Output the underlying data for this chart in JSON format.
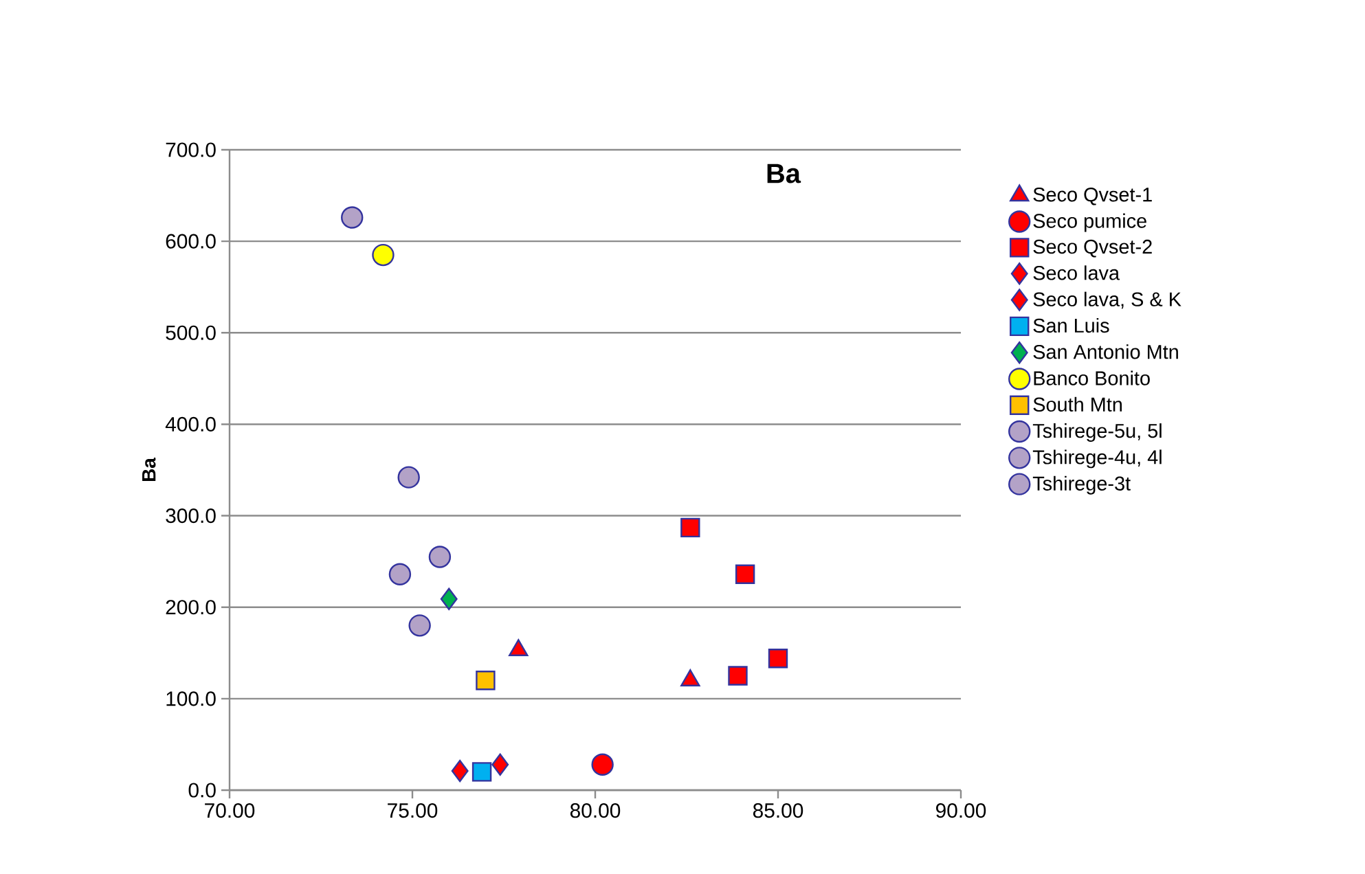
{
  "chart_data": {
    "type": "scatter",
    "title": "Ba",
    "ylabel": "Ba",
    "xlim": [
      70,
      90
    ],
    "ylim": [
      0,
      700
    ],
    "xticks": [
      {
        "value": 70,
        "label": "70.00"
      },
      {
        "value": 75,
        "label": "75.00"
      },
      {
        "value": 80,
        "label": "80.00"
      },
      {
        "value": 85,
        "label": "85.00"
      },
      {
        "value": 90,
        "label": "90.00"
      }
    ],
    "yticks": [
      {
        "value": 0,
        "label": "0.0"
      },
      {
        "value": 100,
        "label": "100.0"
      },
      {
        "value": 200,
        "label": "200.0"
      },
      {
        "value": 300,
        "label": "300.0"
      },
      {
        "value": 400,
        "label": "400.0"
      },
      {
        "value": 500,
        "label": "500.0"
      },
      {
        "value": 600,
        "label": "600.0"
      },
      {
        "value": 700,
        "label": "700.0"
      }
    ],
    "grid": "y",
    "legend": "right",
    "series": [
      {
        "name": "Seco Qvset-1",
        "marker": "triangle",
        "color": "#ff0000",
        "x": [
          77.9,
          82.6
        ],
        "values": [
          153,
          120
        ]
      },
      {
        "name": "Seco pumice",
        "marker": "circle",
        "color": "#ff0000",
        "x": [
          80.2
        ],
        "values": [
          28
        ]
      },
      {
        "name": "Seco Qvset-2",
        "marker": "square",
        "color": "#ff0000",
        "x": [
          82.6,
          84.1,
          83.9,
          85.0
        ],
        "values": [
          287,
          236,
          125,
          144
        ]
      },
      {
        "name": "Seco lava",
        "marker": "diamond",
        "color": "#ff0000",
        "x": [
          77.4
        ],
        "values": [
          28
        ]
      },
      {
        "name": "Seco lava, S & K",
        "marker": "diamond",
        "color": "#ff0000",
        "x": [
          76.3
        ],
        "values": [
          21
        ]
      },
      {
        "name": "San Luis",
        "marker": "square",
        "color": "#00b0f0",
        "x": [
          76.9
        ],
        "values": [
          20
        ]
      },
      {
        "name": "San Antonio Mtn",
        "marker": "diamond",
        "color": "#00b050",
        "x": [
          76.0
        ],
        "values": [
          209
        ]
      },
      {
        "name": "Banco Bonito",
        "marker": "circle",
        "color": "#ffff00",
        "x": [
          74.2
        ],
        "values": [
          585
        ]
      },
      {
        "name": "South Mtn",
        "marker": "square",
        "color": "#ffc000",
        "x": [
          77.0
        ],
        "values": [
          120
        ]
      },
      {
        "name": "Tshirege-5u, 5l",
        "marker": "circle",
        "color": "#b3a2c7",
        "x": [
          74.9,
          75.75
        ],
        "values": [
          342,
          255
        ]
      },
      {
        "name": "Tshirege-4u, 4l",
        "marker": "circle",
        "color": "#b3a2c7",
        "x": [
          73.35,
          74.66
        ],
        "values": [
          626,
          236
        ]
      },
      {
        "name": "Tshirege-3t",
        "marker": "circle",
        "color": "#b3a2c7",
        "x": [
          75.2
        ],
        "values": [
          180
        ]
      }
    ]
  }
}
